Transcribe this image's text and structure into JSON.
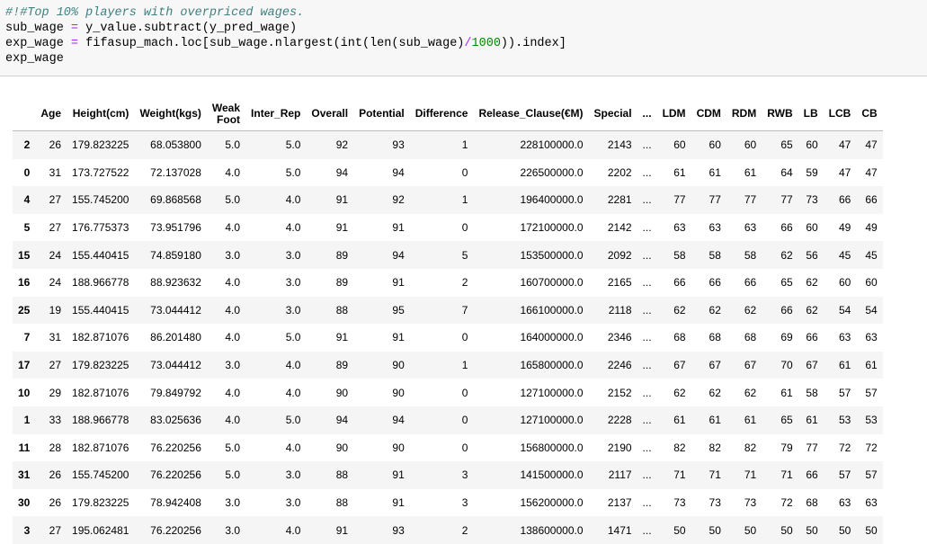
{
  "code_lines": [
    {
      "type": "comment",
      "text": "#!#Top 10% players with overpriced wages."
    },
    {
      "type": "code",
      "parts": [
        {
          "t": "sub_wage "
        },
        {
          "t": "=",
          "op": true
        },
        {
          "t": " y_value.subtract(y_pred_wage)"
        }
      ]
    },
    {
      "type": "code",
      "parts": [
        {
          "t": "exp_wage "
        },
        {
          "t": "=",
          "op": true
        },
        {
          "t": " fifasup_mach.loc[sub_wage.nlargest(int(len(sub_wage)"
        },
        {
          "t": "/",
          "op": true
        },
        {
          "t": "1000",
          "num": true
        },
        {
          "t": ")).index]"
        }
      ]
    },
    {
      "type": "code",
      "parts": [
        {
          "t": "exp_wage"
        }
      ]
    }
  ],
  "table": {
    "columns": [
      "",
      "Age",
      "Height(cm)",
      "Weight(kgs)",
      "Weak Foot",
      "Inter_Rep",
      "Overall",
      "Potential",
      "Difference",
      "Release_Clause(€M)",
      "Special",
      "...",
      "LDM",
      "CDM",
      "RDM",
      "RWB",
      "LB",
      "LCB",
      "CB"
    ],
    "rows": [
      [
        "2",
        "26",
        "179.823225",
        "68.053800",
        "5.0",
        "5.0",
        "92",
        "93",
        "1",
        "228100000.0",
        "2143",
        "...",
        "60",
        "60",
        "60",
        "65",
        "60",
        "47",
        "47"
      ],
      [
        "0",
        "31",
        "173.727522",
        "72.137028",
        "4.0",
        "5.0",
        "94",
        "94",
        "0",
        "226500000.0",
        "2202",
        "...",
        "61",
        "61",
        "61",
        "64",
        "59",
        "47",
        "47"
      ],
      [
        "4",
        "27",
        "155.745200",
        "69.868568",
        "5.0",
        "4.0",
        "91",
        "92",
        "1",
        "196400000.0",
        "2281",
        "...",
        "77",
        "77",
        "77",
        "77",
        "73",
        "66",
        "66"
      ],
      [
        "5",
        "27",
        "176.775373",
        "73.951796",
        "4.0",
        "4.0",
        "91",
        "91",
        "0",
        "172100000.0",
        "2142",
        "...",
        "63",
        "63",
        "63",
        "66",
        "60",
        "49",
        "49"
      ],
      [
        "15",
        "24",
        "155.440415",
        "74.859180",
        "3.0",
        "3.0",
        "89",
        "94",
        "5",
        "153500000.0",
        "2092",
        "...",
        "58",
        "58",
        "58",
        "62",
        "56",
        "45",
        "45"
      ],
      [
        "16",
        "24",
        "188.966778",
        "88.923632",
        "4.0",
        "3.0",
        "89",
        "91",
        "2",
        "160700000.0",
        "2165",
        "...",
        "66",
        "66",
        "66",
        "65",
        "62",
        "60",
        "60"
      ],
      [
        "25",
        "19",
        "155.440415",
        "73.044412",
        "4.0",
        "3.0",
        "88",
        "95",
        "7",
        "166100000.0",
        "2118",
        "...",
        "62",
        "62",
        "62",
        "66",
        "62",
        "54",
        "54"
      ],
      [
        "7",
        "31",
        "182.871076",
        "86.201480",
        "4.0",
        "5.0",
        "91",
        "91",
        "0",
        "164000000.0",
        "2346",
        "...",
        "68",
        "68",
        "68",
        "69",
        "66",
        "63",
        "63"
      ],
      [
        "17",
        "27",
        "179.823225",
        "73.044412",
        "3.0",
        "4.0",
        "89",
        "90",
        "1",
        "165800000.0",
        "2246",
        "...",
        "67",
        "67",
        "67",
        "70",
        "67",
        "61",
        "61"
      ],
      [
        "10",
        "29",
        "182.871076",
        "79.849792",
        "4.0",
        "4.0",
        "90",
        "90",
        "0",
        "127100000.0",
        "2152",
        "...",
        "62",
        "62",
        "62",
        "61",
        "58",
        "57",
        "57"
      ],
      [
        "1",
        "33",
        "188.966778",
        "83.025636",
        "4.0",
        "5.0",
        "94",
        "94",
        "0",
        "127100000.0",
        "2228",
        "...",
        "61",
        "61",
        "61",
        "65",
        "61",
        "53",
        "53"
      ],
      [
        "11",
        "28",
        "182.871076",
        "76.220256",
        "5.0",
        "4.0",
        "90",
        "90",
        "0",
        "156800000.0",
        "2190",
        "...",
        "82",
        "82",
        "82",
        "79",
        "77",
        "72",
        "72"
      ],
      [
        "31",
        "26",
        "155.745200",
        "76.220256",
        "5.0",
        "3.0",
        "88",
        "91",
        "3",
        "141500000.0",
        "2117",
        "...",
        "71",
        "71",
        "71",
        "71",
        "66",
        "57",
        "57"
      ],
      [
        "30",
        "26",
        "179.823225",
        "78.942408",
        "3.0",
        "3.0",
        "88",
        "91",
        "3",
        "156200000.0",
        "2137",
        "...",
        "73",
        "73",
        "73",
        "72",
        "68",
        "63",
        "63"
      ],
      [
        "3",
        "27",
        "195.062481",
        "76.220256",
        "3.0",
        "4.0",
        "91",
        "93",
        "2",
        "138600000.0",
        "1471",
        "...",
        "50",
        "50",
        "50",
        "50",
        "50",
        "50",
        "50"
      ]
    ]
  }
}
